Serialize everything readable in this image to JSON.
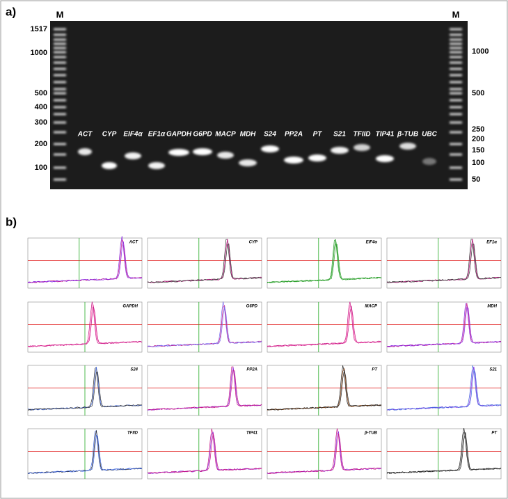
{
  "panel_a": {
    "label": "a)",
    "gel": {
      "marker_left": "M",
      "marker_right": "M",
      "ladder_left": [
        "1517",
        "1000",
        "500",
        "400",
        "300",
        "200",
        "100"
      ],
      "ladder_right": [
        "1000",
        "500",
        "250",
        "200",
        "150",
        "100",
        "50"
      ],
      "lanes": [
        "ACT",
        "CYP",
        "EIF4α",
        "EF1α",
        "GAPDH",
        "G6PD",
        "MACP",
        "MDH",
        "S24",
        "PP2A",
        "PT",
        "S21",
        "TFIID",
        "TIP41",
        "β-TUB",
        "UBC"
      ]
    }
  },
  "panel_b": {
    "label": "b)",
    "plots": [
      "ACT",
      "CYP",
      "EIF4α",
      "EF1α",
      "GAPDH",
      "G6PD",
      "MACP",
      "MDH",
      "S24",
      "PP2A",
      "PT",
      "S21",
      "TFIID",
      "TIP41",
      "β-TUB",
      "PT"
    ]
  }
}
